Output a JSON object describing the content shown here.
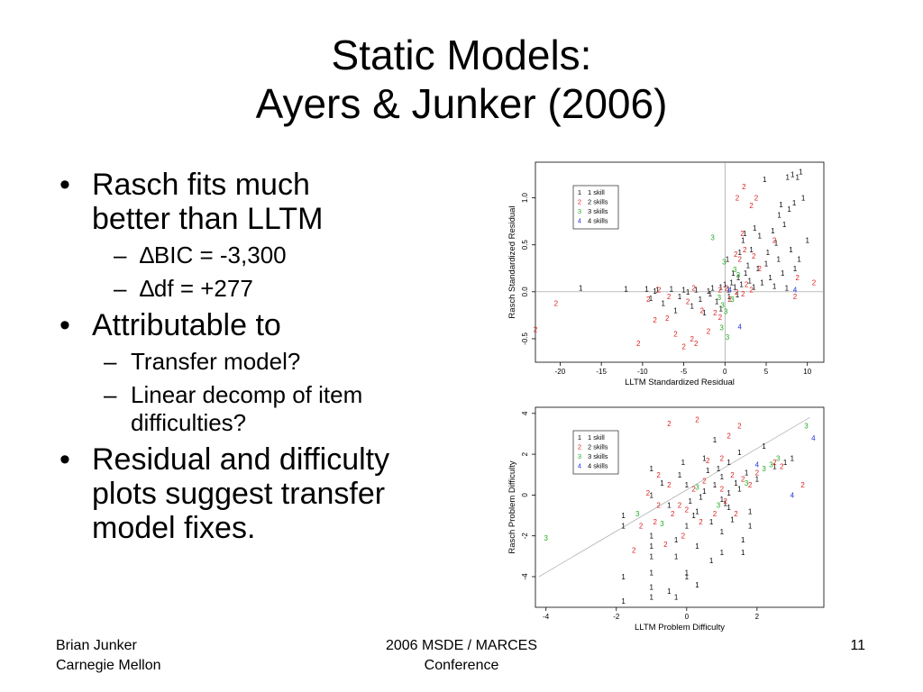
{
  "slide": {
    "title_line1": "Static Models:",
    "title_line2": "Ayers & Junker (2006)",
    "bullets": {
      "b1_line1": "Rasch fits much",
      "b1_line2": "better than LLTM",
      "sub1_symbol": "∆",
      "sub1_text": "BIC = -3,300",
      "sub2_symbol": "∆",
      "sub2_text": "df = +277",
      "dash": "–",
      "b2": "Attributable to",
      "sub3": "Transfer model?",
      "sub4_line1": "Linear decomp of item",
      "sub4_line2": "difficulties?",
      "b3_line1": "Residual and difficulty",
      "b3_line2": "plots suggest transfer",
      "b3_line3": "model fixes."
    }
  },
  "footer": {
    "left_line1": "Brian Junker",
    "left_line2": "Carnegie Mellon",
    "center_line1": "2006 MSDE / MARCES",
    "center_line2": "Conference",
    "page_number": "11"
  },
  "chart_data": [
    {
      "type": "scatter",
      "xlabel": "LLTM Standardized Residual",
      "ylabel": "Rasch Standardized Residual",
      "xlim": [
        -23,
        12
      ],
      "ylim": [
        -0.75,
        1.38
      ],
      "x_ticks": [
        -20,
        -15,
        -10,
        -5,
        0,
        5,
        10
      ],
      "y_ticks": [
        -0.5,
        0.0,
        0.5,
        1.0
      ],
      "x_tick_labels": [
        "-20",
        "-15",
        "-10",
        "-5",
        "0",
        "5",
        "10"
      ],
      "y_tick_labels": [
        "-0.5",
        "0.0",
        "0.5",
        "1.0"
      ],
      "reference_lines": {
        "vertical_x": 0,
        "horizontal_y": 0
      },
      "legend": {
        "placement": "top-left",
        "entries": [
          {
            "marker": "1",
            "label": "1 skill",
            "color": "#000000"
          },
          {
            "marker": "2",
            "label": "2 skills",
            "color": "#dd2222"
          },
          {
            "marker": "3",
            "label": "3 skills",
            "color": "#22aa22"
          },
          {
            "marker": "4",
            "label": "4 skills",
            "color": "#2233dd"
          }
        ]
      },
      "series": [
        {
          "marker": "1",
          "color": "#000000",
          "points": [
            [
              -17.5,
              0.04
            ],
            [
              -12,
              0.03
            ],
            [
              -9.5,
              0.03
            ],
            [
              -8.2,
              0.02
            ],
            [
              -6.5,
              0.03
            ],
            [
              -5,
              0.02
            ],
            [
              -3.5,
              0.02
            ],
            [
              -2,
              0.01
            ],
            [
              -1.5,
              0.04
            ],
            [
              -0.5,
              0.05
            ],
            [
              0,
              0.08
            ],
            [
              0.4,
              0.02
            ],
            [
              0.8,
              0.1
            ],
            [
              1.2,
              0.05
            ],
            [
              1.6,
              0.15
            ],
            [
              2,
              0.08
            ],
            [
              2.5,
              0.2
            ],
            [
              3,
              0.12
            ],
            [
              3.5,
              0.05
            ],
            [
              4,
              0.25
            ],
            [
              4.5,
              0.1
            ],
            [
              5,
              0.3
            ],
            [
              5.5,
              0.15
            ],
            [
              6,
              0.06
            ],
            [
              6.5,
              0.35
            ],
            [
              7,
              0.2
            ],
            [
              7.5,
              0.04
            ],
            [
              8,
              0.45
            ],
            [
              8.5,
              0.25
            ],
            [
              9,
              0.35
            ],
            [
              10,
              0.55
            ],
            [
              -9,
              -0.07
            ],
            [
              -7.5,
              -0.12
            ],
            [
              -6,
              -0.2
            ],
            [
              -5.5,
              -0.05
            ],
            [
              -4,
              -0.15
            ],
            [
              -3,
              -0.08
            ],
            [
              -2.5,
              -0.22
            ],
            [
              -1,
              -0.1
            ],
            [
              -0.5,
              -0.18
            ],
            [
              0.5,
              -0.05
            ],
            [
              1,
              0.2
            ],
            [
              0.3,
              0.35
            ],
            [
              1.8,
              0.42
            ],
            [
              2.2,
              0.55
            ],
            [
              2.8,
              0.28
            ],
            [
              3.2,
              0.45
            ],
            [
              4.2,
              0.6
            ],
            [
              5.2,
              0.42
            ],
            [
              6.2,
              0.52
            ],
            [
              7.2,
              0.72
            ],
            [
              7.8,
              0.88
            ],
            [
              8.4,
              0.95
            ],
            [
              7.6,
              1.22
            ],
            [
              8.2,
              1.25
            ],
            [
              9.2,
              1.28
            ],
            [
              8.8,
              1.22
            ],
            [
              4.8,
              1.2
            ],
            [
              9.5,
              1.0
            ],
            [
              6.8,
              0.93
            ],
            [
              5.8,
              0.65
            ],
            [
              6.6,
              0.82
            ],
            [
              3.6,
              0.68
            ],
            [
              2.4,
              0.62
            ],
            [
              -8.5,
              0.01
            ],
            [
              -4.5,
              0.0
            ],
            [
              -1.8,
              -0.02
            ],
            [
              1.5,
              -0.03
            ]
          ]
        },
        {
          "marker": "2",
          "color": "#dd2222",
          "points": [
            [
              -20.5,
              -0.12
            ],
            [
              -23,
              -0.4
            ],
            [
              -10.5,
              -0.55
            ],
            [
              -8.5,
              -0.3
            ],
            [
              -7,
              -0.28
            ],
            [
              -6,
              -0.45
            ],
            [
              -5,
              -0.58
            ],
            [
              -3.5,
              -0.55
            ],
            [
              -2,
              -0.42
            ],
            [
              -8,
              0.02
            ],
            [
              -9.3,
              -0.08
            ],
            [
              -6.8,
              -0.05
            ],
            [
              -4.5,
              -0.1
            ],
            [
              -3.8,
              0.04
            ],
            [
              -2.8,
              -0.2
            ],
            [
              -1.2,
              -0.22
            ],
            [
              -0.6,
              0.02
            ],
            [
              0.2,
              0.04
            ],
            [
              0.6,
              -0.08
            ],
            [
              1.4,
              0.0
            ],
            [
              2.2,
              -0.02
            ],
            [
              2.6,
              0.08
            ],
            [
              3.2,
              0.02
            ],
            [
              1.8,
              0.35
            ],
            [
              2.4,
              0.45
            ],
            [
              2.1,
              0.62
            ],
            [
              1.3,
              0.4
            ],
            [
              3.5,
              0.38
            ],
            [
              4.2,
              0.25
            ],
            [
              8.8,
              0.15
            ],
            [
              10.8,
              0.1
            ],
            [
              8.5,
              -0.05
            ],
            [
              6,
              0.55
            ],
            [
              1.5,
              1.0
            ],
            [
              2.3,
              1.12
            ],
            [
              3.8,
              1.0
            ],
            [
              3.2,
              0.92
            ],
            [
              -0.6,
              -0.27
            ],
            [
              -4,
              -0.5
            ]
          ]
        },
        {
          "marker": "3",
          "color": "#22aa22",
          "points": [
            [
              -1.5,
              0.58
            ],
            [
              -0.3,
              -0.14
            ],
            [
              0.1,
              -0.21
            ],
            [
              -0.4,
              -0.38
            ],
            [
              0.3,
              -0.48
            ],
            [
              -0.1,
              0.32
            ],
            [
              1.2,
              0.24
            ],
            [
              1.6,
              0.18
            ],
            [
              0.9,
              -0.08
            ],
            [
              -0.7,
              -0.06
            ]
          ]
        },
        {
          "marker": "4",
          "color": "#2233dd",
          "points": [
            [
              1.8,
              -0.37
            ],
            [
              8.5,
              0.02
            ],
            [
              0.6,
              0.02
            ]
          ]
        }
      ]
    },
    {
      "type": "scatter",
      "xlabel": "LLTM Problem Difficulty",
      "ylabel": "Rasch Problem Difficulty",
      "xlim": [
        -4.3,
        3.9
      ],
      "ylim": [
        -5.5,
        4.3
      ],
      "x_ticks": [
        -4,
        -2,
        0,
        2
      ],
      "y_ticks": [
        -4,
        -2,
        0,
        2,
        4
      ],
      "x_tick_labels": [
        "-4",
        "-2",
        "0",
        "2"
      ],
      "y_tick_labels": [
        "-4",
        "-2",
        "0",
        "2",
        "4"
      ],
      "reference_line": {
        "type": "identity",
        "from": [
          -4.2,
          -4.0
        ],
        "to": [
          3.5,
          3.8
        ]
      },
      "legend": {
        "placement": "top-left",
        "entries": [
          {
            "marker": "1",
            "label": "1 skill",
            "color": "#000000"
          },
          {
            "marker": "2",
            "label": "2 skills",
            "color": "#dd2222"
          },
          {
            "marker": "3",
            "label": "3 skills",
            "color": "#22aa22"
          },
          {
            "marker": "4",
            "label": "4 skills",
            "color": "#2233dd"
          }
        ]
      },
      "series": [
        {
          "marker": "1",
          "color": "#000000",
          "points": [
            [
              -1.8,
              -1.0
            ],
            [
              -1.8,
              -1.5
            ],
            [
              -1.8,
              -4.0
            ],
            [
              -1.8,
              -5.2
            ],
            [
              -1,
              -2.0
            ],
            [
              -1,
              -2.5
            ],
            [
              -1,
              -3.0
            ],
            [
              -1,
              -3.8
            ],
            [
              -1,
              -4.5
            ],
            [
              -1,
              -5.0
            ],
            [
              -1,
              0.0
            ],
            [
              -1,
              1.3
            ],
            [
              -0.5,
              -0.5
            ],
            [
              -0.5,
              -4.7
            ],
            [
              -0.3,
              -2.2
            ],
            [
              -0.3,
              -3.0
            ],
            [
              -0.3,
              -5.0
            ],
            [
              0,
              -1.5
            ],
            [
              0,
              -3.8
            ],
            [
              0,
              -4.0
            ],
            [
              0,
              0.5
            ],
            [
              0.3,
              -0.8
            ],
            [
              0.3,
              -2.5
            ],
            [
              0.3,
              -4.4
            ],
            [
              0.5,
              0.2
            ],
            [
              0.5,
              1.8
            ],
            [
              0.7,
              -1.3
            ],
            [
              0.7,
              -3.2
            ],
            [
              0.8,
              0.5
            ],
            [
              0.8,
              2.7
            ],
            [
              1.0,
              -1.8
            ],
            [
              1.0,
              -2.8
            ],
            [
              1.0,
              0.9
            ],
            [
              1.0,
              -0.2
            ],
            [
              1.2,
              1.6
            ],
            [
              1.2,
              -0.6
            ],
            [
              1.3,
              -1.2
            ],
            [
              1.5,
              2.1
            ],
            [
              1.5,
              0.3
            ],
            [
              1.6,
              -2.2
            ],
            [
              1.6,
              -2.8
            ],
            [
              1.8,
              -0.8
            ],
            [
              1.8,
              -1.5
            ],
            [
              2.0,
              0.8
            ],
            [
              2.2,
              2.4
            ],
            [
              2.5,
              1.4
            ],
            [
              2.8,
              1.6
            ],
            [
              3.0,
              1.8
            ],
            [
              -0.7,
              0.6
            ],
            [
              -0.2,
              1.0
            ],
            [
              0.1,
              -0.3
            ],
            [
              0.6,
              1.2
            ],
            [
              1.1,
              -0.4
            ],
            [
              0.4,
              -0.1
            ],
            [
              1.4,
              0.6
            ],
            [
              1.7,
              1.1
            ],
            [
              1.2,
              0.1
            ],
            [
              0.9,
              1.3
            ],
            [
              -0.1,
              1.6
            ],
            [
              0.2,
              -1.0
            ]
          ]
        },
        {
          "marker": "2",
          "color": "#dd2222",
          "points": [
            [
              -0.5,
              3.5
            ],
            [
              0.3,
              3.7
            ],
            [
              0.6,
              1.7
            ],
            [
              1.2,
              2.9
            ],
            [
              1.5,
              3.4
            ],
            [
              1.0,
              1.8
            ],
            [
              -0.8,
              1.0
            ],
            [
              -0.5,
              0.5
            ],
            [
              -0.8,
              -0.5
            ],
            [
              -0.4,
              -0.9
            ],
            [
              0.4,
              -1.3
            ],
            [
              -0.1,
              -2.0
            ],
            [
              0.8,
              -0.9
            ],
            [
              1.0,
              0.3
            ],
            [
              1.3,
              1.0
            ],
            [
              1.6,
              0.8
            ],
            [
              1.8,
              0.5
            ],
            [
              2.0,
              1.1
            ],
            [
              2.5,
              1.6
            ],
            [
              2.7,
              1.4
            ],
            [
              -1.5,
              -2.7
            ],
            [
              -1.3,
              -1.5
            ],
            [
              -0.6,
              -2.4
            ],
            [
              -0.2,
              -0.5
            ],
            [
              0.2,
              0.3
            ],
            [
              0.5,
              0.7
            ],
            [
              1.1,
              -0.3
            ],
            [
              1.4,
              -0.9
            ],
            [
              3.3,
              0.5
            ],
            [
              -1.1,
              0.1
            ],
            [
              -0.9,
              -1.3
            ],
            [
              0.0,
              -0.7
            ]
          ]
        },
        {
          "marker": "3",
          "color": "#22aa22",
          "points": [
            [
              -4,
              -2.1
            ],
            [
              -1.4,
              -0.9
            ],
            [
              -0.7,
              -1.4
            ],
            [
              0.3,
              0.4
            ],
            [
              1.7,
              0.6
            ],
            [
              2.2,
              1.3
            ],
            [
              2.6,
              1.8
            ],
            [
              3.4,
              3.4
            ],
            [
              0.9,
              -0.5
            ],
            [
              2.4,
              1.5
            ]
          ]
        },
        {
          "marker": "4",
          "color": "#2233dd",
          "points": [
            [
              3.6,
              2.8
            ],
            [
              3.0,
              0.0
            ],
            [
              2.0,
              1.5
            ]
          ]
        }
      ]
    }
  ]
}
